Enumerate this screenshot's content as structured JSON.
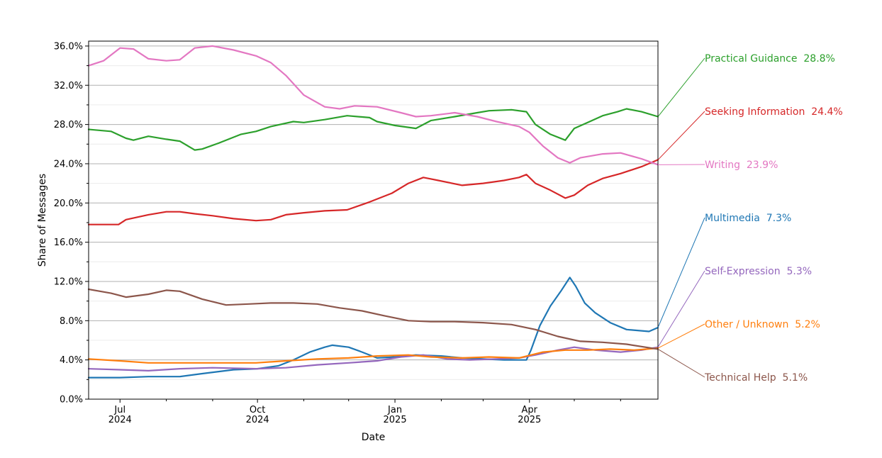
{
  "chart_data": {
    "type": "line",
    "title": "",
    "xlabel": "Date",
    "ylabel": "Share of Messages",
    "x_ticks": [
      {
        "date": "2024-07-01",
        "line1": "Jul",
        "line2": "2024"
      },
      {
        "date": "2024-10-01",
        "line1": "Oct",
        "line2": "2024"
      },
      {
        "date": "2025-01-01",
        "line1": "Jan",
        "line2": "2025"
      },
      {
        "date": "2025-04-01",
        "line1": "Apr",
        "line2": "2025"
      }
    ],
    "x_minor_ticks": [
      "2024-08-01",
      "2024-09-01",
      "2024-11-01",
      "2024-12-01",
      "2025-02-01",
      "2025-03-01",
      "2025-05-01",
      "2025-06-01"
    ],
    "xlim": [
      "2024-06-10",
      "2025-06-26"
    ],
    "y_ticks": [
      "0.0%",
      "4.0%",
      "8.0%",
      "12.0%",
      "16.0%",
      "20.0%",
      "24.0%",
      "28.0%",
      "32.0%",
      "36.0%"
    ],
    "ylim": [
      0,
      36.5
    ],
    "grid": true,
    "series": [
      {
        "name": "Practical Guidance",
        "color": "#2ca02c",
        "end_label": "Practical Guidance  28.8%",
        "points": [
          [
            "2024-06-10",
            27.5
          ],
          [
            "2024-06-25",
            27.3
          ],
          [
            "2024-07-05",
            26.6
          ],
          [
            "2024-07-10",
            26.4
          ],
          [
            "2024-07-20",
            26.8
          ],
          [
            "2024-08-01",
            26.5
          ],
          [
            "2024-08-10",
            26.3
          ],
          [
            "2024-08-20",
            25.4
          ],
          [
            "2024-08-25",
            25.5
          ],
          [
            "2024-09-05",
            26.1
          ],
          [
            "2024-09-20",
            27.0
          ],
          [
            "2024-09-30",
            27.3
          ],
          [
            "2024-10-10",
            27.8
          ],
          [
            "2024-10-25",
            28.3
          ],
          [
            "2024-11-01",
            28.2
          ],
          [
            "2024-11-15",
            28.5
          ],
          [
            "2024-11-30",
            28.9
          ],
          [
            "2024-12-15",
            28.7
          ],
          [
            "2024-12-20",
            28.3
          ],
          [
            "2025-01-01",
            27.9
          ],
          [
            "2025-01-15",
            27.6
          ],
          [
            "2025-01-25",
            28.4
          ],
          [
            "2025-02-10",
            28.8
          ],
          [
            "2025-02-25",
            29.2
          ],
          [
            "2025-03-05",
            29.4
          ],
          [
            "2025-03-20",
            29.5
          ],
          [
            "2025-03-30",
            29.3
          ],
          [
            "2025-04-05",
            28.0
          ],
          [
            "2025-04-15",
            27.0
          ],
          [
            "2025-04-25",
            26.4
          ],
          [
            "2025-05-01",
            27.6
          ],
          [
            "2025-05-10",
            28.2
          ],
          [
            "2025-05-20",
            28.9
          ],
          [
            "2025-05-30",
            29.3
          ],
          [
            "2025-06-05",
            29.6
          ],
          [
            "2025-06-15",
            29.3
          ],
          [
            "2025-06-26",
            28.8
          ]
        ]
      },
      {
        "name": "Seeking Information",
        "color": "#d62728",
        "end_label": "Seeking Information  24.4%",
        "points": [
          [
            "2024-06-10",
            17.8
          ],
          [
            "2024-06-20",
            17.8
          ],
          [
            "2024-06-30",
            17.8
          ],
          [
            "2024-07-05",
            18.3
          ],
          [
            "2024-07-20",
            18.8
          ],
          [
            "2024-08-01",
            19.1
          ],
          [
            "2024-08-10",
            19.1
          ],
          [
            "2024-08-20",
            18.9
          ],
          [
            "2024-09-01",
            18.7
          ],
          [
            "2024-09-15",
            18.4
          ],
          [
            "2024-09-30",
            18.2
          ],
          [
            "2024-10-10",
            18.3
          ],
          [
            "2024-10-20",
            18.8
          ],
          [
            "2024-11-01",
            19.0
          ],
          [
            "2024-11-15",
            19.2
          ],
          [
            "2024-11-30",
            19.3
          ],
          [
            "2024-12-15",
            20.1
          ],
          [
            "2024-12-30",
            21.0
          ],
          [
            "2025-01-10",
            22.0
          ],
          [
            "2025-01-20",
            22.6
          ],
          [
            "2025-01-30",
            22.3
          ],
          [
            "2025-02-15",
            21.8
          ],
          [
            "2025-03-01",
            22.0
          ],
          [
            "2025-03-15",
            22.3
          ],
          [
            "2025-03-25",
            22.6
          ],
          [
            "2025-03-30",
            22.9
          ],
          [
            "2025-04-05",
            22.0
          ],
          [
            "2025-04-15",
            21.3
          ],
          [
            "2025-04-25",
            20.5
          ],
          [
            "2025-05-01",
            20.8
          ],
          [
            "2025-05-10",
            21.8
          ],
          [
            "2025-05-20",
            22.5
          ],
          [
            "2025-06-01",
            23.0
          ],
          [
            "2025-06-15",
            23.7
          ],
          [
            "2025-06-26",
            24.4
          ]
        ]
      },
      {
        "name": "Writing",
        "color": "#e377c2",
        "end_label": "Writing  23.9%",
        "points": [
          [
            "2024-06-10",
            34.0
          ],
          [
            "2024-06-20",
            34.5
          ],
          [
            "2024-07-01",
            35.8
          ],
          [
            "2024-07-10",
            35.7
          ],
          [
            "2024-07-20",
            34.7
          ],
          [
            "2024-08-01",
            34.5
          ],
          [
            "2024-08-10",
            34.6
          ],
          [
            "2024-08-20",
            35.8
          ],
          [
            "2024-09-01",
            36.0
          ],
          [
            "2024-09-15",
            35.6
          ],
          [
            "2024-09-30",
            35.0
          ],
          [
            "2024-10-10",
            34.3
          ],
          [
            "2024-10-20",
            33.0
          ],
          [
            "2024-11-01",
            31.0
          ],
          [
            "2024-11-15",
            29.8
          ],
          [
            "2024-11-25",
            29.6
          ],
          [
            "2024-12-05",
            29.9
          ],
          [
            "2024-12-20",
            29.8
          ],
          [
            "2025-01-05",
            29.2
          ],
          [
            "2025-01-15",
            28.8
          ],
          [
            "2025-01-25",
            28.9
          ],
          [
            "2025-02-10",
            29.2
          ],
          [
            "2025-02-25",
            28.8
          ],
          [
            "2025-03-10",
            28.3
          ],
          [
            "2025-03-25",
            27.8
          ],
          [
            "2025-04-01",
            27.2
          ],
          [
            "2025-04-10",
            25.8
          ],
          [
            "2025-04-20",
            24.6
          ],
          [
            "2025-04-28",
            24.1
          ],
          [
            "2025-05-05",
            24.6
          ],
          [
            "2025-05-20",
            25.0
          ],
          [
            "2025-06-01",
            25.1
          ],
          [
            "2025-06-15",
            24.5
          ],
          [
            "2025-06-26",
            23.9
          ]
        ]
      },
      {
        "name": "Multimedia",
        "color": "#1f77b4",
        "end_label": "Multimedia  7.3%",
        "points": [
          [
            "2024-06-10",
            2.2
          ],
          [
            "2024-07-01",
            2.2
          ],
          [
            "2024-07-20",
            2.3
          ],
          [
            "2024-08-10",
            2.3
          ],
          [
            "2024-08-25",
            2.6
          ],
          [
            "2024-09-15",
            3.0
          ],
          [
            "2024-10-01",
            3.1
          ],
          [
            "2024-10-15",
            3.4
          ],
          [
            "2024-10-25",
            4.0
          ],
          [
            "2024-11-05",
            4.8
          ],
          [
            "2024-11-15",
            5.3
          ],
          [
            "2024-11-20",
            5.5
          ],
          [
            "2024-12-01",
            5.3
          ],
          [
            "2024-12-10",
            4.8
          ],
          [
            "2024-12-20",
            4.2
          ],
          [
            "2025-01-01",
            4.3
          ],
          [
            "2025-01-15",
            4.5
          ],
          [
            "2025-02-01",
            4.4
          ],
          [
            "2025-02-15",
            4.2
          ],
          [
            "2025-03-01",
            4.1
          ],
          [
            "2025-03-15",
            4.0
          ],
          [
            "2025-03-30",
            4.0
          ],
          [
            "2025-04-02",
            5.0
          ],
          [
            "2025-04-08",
            7.5
          ],
          [
            "2025-04-15",
            9.5
          ],
          [
            "2025-04-22",
            11.0
          ],
          [
            "2025-04-28",
            12.4
          ],
          [
            "2025-05-02",
            11.5
          ],
          [
            "2025-05-08",
            9.8
          ],
          [
            "2025-05-15",
            8.8
          ],
          [
            "2025-05-25",
            7.8
          ],
          [
            "2025-06-05",
            7.1
          ],
          [
            "2025-06-20",
            6.9
          ],
          [
            "2025-06-26",
            7.3
          ]
        ]
      },
      {
        "name": "Self-Expression",
        "color": "#9467bd",
        "end_label": "Self-Expression  5.3%",
        "points": [
          [
            "2024-06-10",
            3.1
          ],
          [
            "2024-07-01",
            3.0
          ],
          [
            "2024-07-20",
            2.9
          ],
          [
            "2024-08-10",
            3.1
          ],
          [
            "2024-09-01",
            3.2
          ],
          [
            "2024-09-30",
            3.1
          ],
          [
            "2024-10-20",
            3.2
          ],
          [
            "2024-11-10",
            3.5
          ],
          [
            "2024-12-01",
            3.7
          ],
          [
            "2024-12-20",
            3.9
          ],
          [
            "2025-01-05",
            4.3
          ],
          [
            "2025-01-20",
            4.5
          ],
          [
            "2025-02-05",
            4.1
          ],
          [
            "2025-02-20",
            4.0
          ],
          [
            "2025-03-10",
            4.1
          ],
          [
            "2025-03-25",
            4.2
          ],
          [
            "2025-04-05",
            4.5
          ],
          [
            "2025-04-20",
            5.0
          ],
          [
            "2025-05-01",
            5.3
          ],
          [
            "2025-05-15",
            5.0
          ],
          [
            "2025-06-01",
            4.8
          ],
          [
            "2025-06-15",
            5.0
          ],
          [
            "2025-06-26",
            5.3
          ]
        ]
      },
      {
        "name": "Other / Unknown",
        "color": "#ff7f0e",
        "end_label": "Other / Unknown  5.2%",
        "points": [
          [
            "2024-06-10",
            4.1
          ],
          [
            "2024-07-01",
            3.9
          ],
          [
            "2024-07-20",
            3.7
          ],
          [
            "2024-08-10",
            3.7
          ],
          [
            "2024-09-01",
            3.7
          ],
          [
            "2024-09-30",
            3.7
          ],
          [
            "2024-10-20",
            3.9
          ],
          [
            "2024-11-10",
            4.1
          ],
          [
            "2024-12-01",
            4.2
          ],
          [
            "2024-12-20",
            4.4
          ],
          [
            "2025-01-10",
            4.5
          ],
          [
            "2025-01-25",
            4.3
          ],
          [
            "2025-02-15",
            4.2
          ],
          [
            "2025-03-05",
            4.3
          ],
          [
            "2025-03-25",
            4.2
          ],
          [
            "2025-04-10",
            4.8
          ],
          [
            "2025-04-25",
            5.0
          ],
          [
            "2025-05-10",
            5.0
          ],
          [
            "2025-05-25",
            5.1
          ],
          [
            "2025-06-10",
            5.0
          ],
          [
            "2025-06-26",
            5.2
          ]
        ]
      },
      {
        "name": "Technical Help",
        "color": "#8c564b",
        "end_label": "Technical Help  5.1%",
        "points": [
          [
            "2024-06-10",
            11.2
          ],
          [
            "2024-06-25",
            10.8
          ],
          [
            "2024-07-05",
            10.4
          ],
          [
            "2024-07-20",
            10.7
          ],
          [
            "2024-08-01",
            11.1
          ],
          [
            "2024-08-10",
            11.0
          ],
          [
            "2024-08-25",
            10.2
          ],
          [
            "2024-09-10",
            9.6
          ],
          [
            "2024-09-25",
            9.7
          ],
          [
            "2024-10-10",
            9.8
          ],
          [
            "2024-10-25",
            9.8
          ],
          [
            "2024-11-10",
            9.7
          ],
          [
            "2024-11-25",
            9.3
          ],
          [
            "2024-12-10",
            9.0
          ],
          [
            "2024-12-25",
            8.5
          ],
          [
            "2025-01-10",
            8.0
          ],
          [
            "2025-01-25",
            7.9
          ],
          [
            "2025-02-10",
            7.9
          ],
          [
            "2025-03-01",
            7.8
          ],
          [
            "2025-03-20",
            7.6
          ],
          [
            "2025-04-05",
            7.1
          ],
          [
            "2025-04-20",
            6.4
          ],
          [
            "2025-05-05",
            5.9
          ],
          [
            "2025-05-20",
            5.8
          ],
          [
            "2025-06-05",
            5.6
          ],
          [
            "2025-06-26",
            5.1
          ]
        ]
      }
    ]
  }
}
